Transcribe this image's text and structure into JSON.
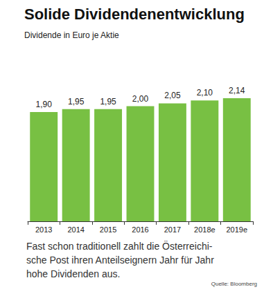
{
  "chart_data": {
    "type": "bar",
    "title": "Solide Dividendenentwicklung",
    "subtitle": "Dividende in Euro je Aktie",
    "categories": [
      "2013",
      "2014",
      "2015",
      "2016",
      "2017",
      "2018e",
      "2019e"
    ],
    "values": [
      1.9,
      1.95,
      1.95,
      2.0,
      2.05,
      2.1,
      2.14
    ],
    "value_labels": [
      "1,90",
      "1,95",
      "1,95",
      "2,00",
      "2,05",
      "2,10",
      "2,14"
    ],
    "color": "#78c043",
    "ylim": [
      0,
      2.5
    ],
    "grid": false,
    "data_labels": true,
    "tick_labels": "x",
    "caption": [
      "Fast schon traditionell zahlt die Österreichi-",
      "sche Post ihren Anteilseignern Jahr für Jahr",
      "hohe Dividenden aus."
    ],
    "source": "Quelle: Bloomberg"
  }
}
